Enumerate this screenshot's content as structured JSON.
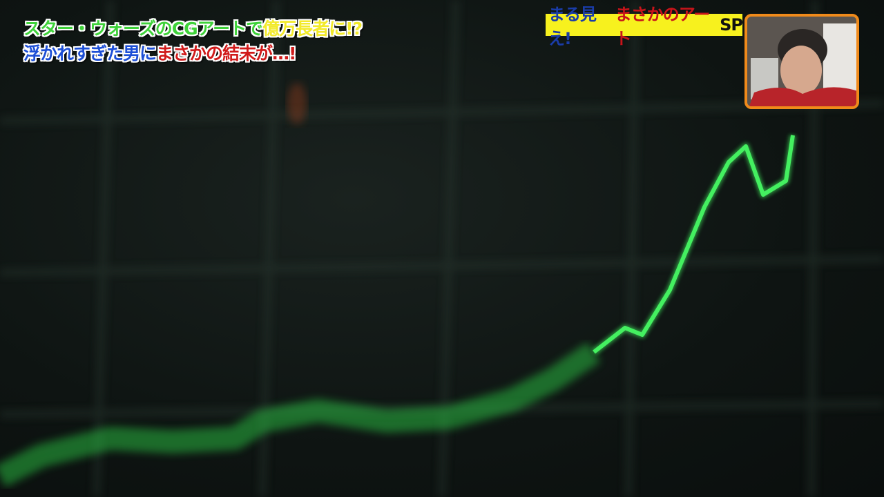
{
  "headline": {
    "line1": [
      {
        "text": "スター・ウォーズのCGアートで",
        "color": "#3fd23a"
      },
      {
        "text": "億万長者に!?",
        "color": "#f2ea2a"
      }
    ],
    "line2": [
      {
        "text": "浮かれすぎた男に",
        "color": "#1d4fd6"
      },
      {
        "text": "まさかの結末が…!",
        "color": "#d01a1a"
      }
    ]
  },
  "corner_title": {
    "part1": "まる見え!",
    "part2": "まさかのアート",
    "part3": "SP",
    "background": "#f7f11e"
  },
  "line_color": "#3ee85a"
}
